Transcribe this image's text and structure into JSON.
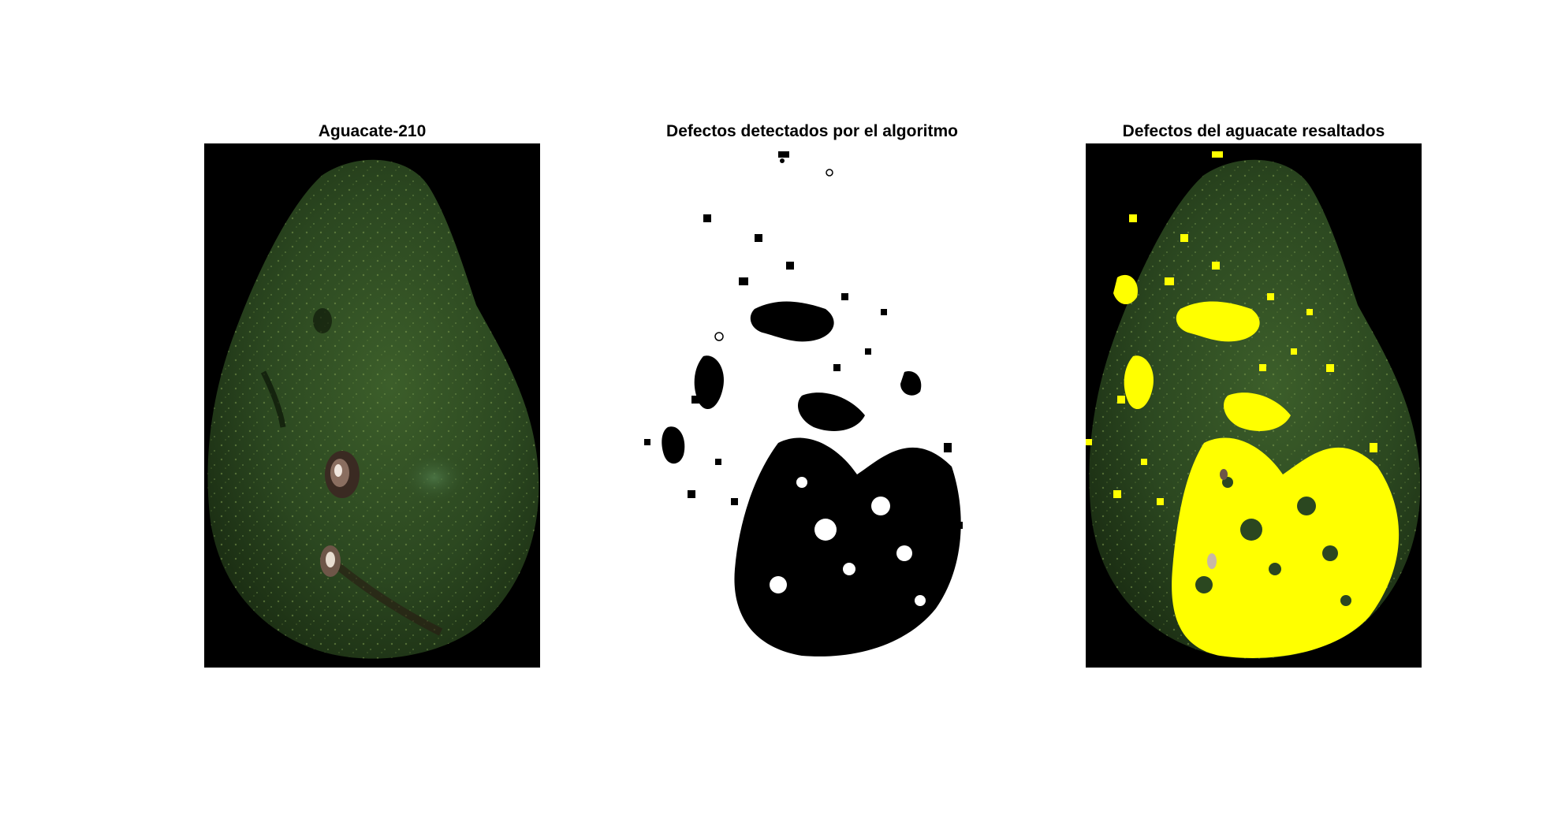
{
  "panels": [
    {
      "title": "Aguacate-210"
    },
    {
      "title": "Defectos detectados por el algoritmo"
    },
    {
      "title": "Defectos del aguacate resaltados"
    }
  ],
  "colors": {
    "background": "#ffffff",
    "frame": "#000000",
    "avocado_dark": "#1f3518",
    "avocado_mid": "#2f4d22",
    "avocado_light": "#4a6b33",
    "defect_mask": "#000000",
    "highlight": "#ffff00"
  }
}
